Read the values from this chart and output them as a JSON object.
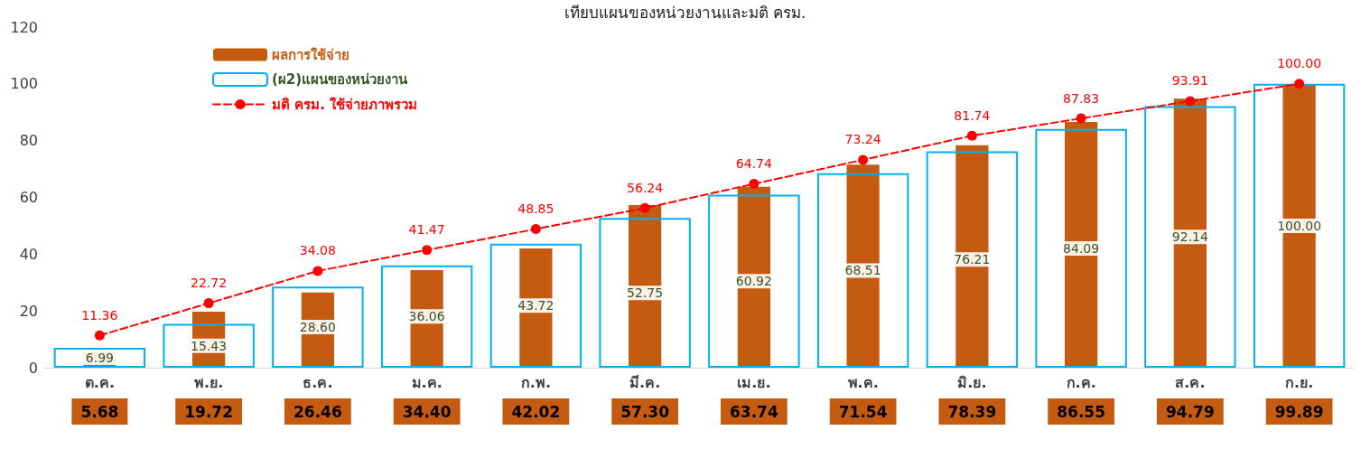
{
  "chart_data": {
    "type": "bar",
    "title": "เทียบแผนของหน่วยงานและมติ ครม.",
    "categories": [
      "ต.ค.",
      "พ.ย.",
      "ธ.ค.",
      "ม.ค.",
      "ก.พ.",
      "มี.ค.",
      "เม.ย.",
      "พ.ค.",
      "มิ.ย.",
      "ก.ค.",
      "ส.ค.",
      "ก.ย."
    ],
    "series": [
      {
        "name": "ผลการใช้จ่าย",
        "color": "#c55a11",
        "values": [
          5.68,
          19.72,
          26.46,
          34.4,
          42.02,
          57.3,
          63.74,
          71.54,
          78.39,
          86.55,
          94.79,
          99.89
        ],
        "value_labels": [
          "5.68",
          "19.72",
          "26.46",
          "34.40",
          "42.02",
          "57.30",
          "63.74",
          "71.54",
          "78.39",
          "86.55",
          "94.79",
          "99.89"
        ]
      },
      {
        "name": "(ผ2)แผนของหน่วยงาน",
        "color": "#00b0f0",
        "values": [
          6.99,
          15.43,
          28.6,
          36.06,
          43.72,
          52.75,
          60.92,
          68.51,
          76.21,
          84.09,
          92.14,
          100.0
        ],
        "value_labels": [
          "6.99",
          "15.43",
          "28.60",
          "36.06",
          "43.72",
          "52.75",
          "60.92",
          "68.51",
          "76.21",
          "84.09",
          "92.14",
          "100.00"
        ]
      },
      {
        "name": "มติ ครม. ใช้จ่ายภาพรวม",
        "type": "line",
        "color": "#ff0000",
        "marker": "circle",
        "line_style": "dashed",
        "values": [
          11.36,
          22.72,
          34.08,
          41.47,
          48.85,
          56.24,
          64.74,
          73.24,
          81.74,
          87.83,
          93.91,
          100.0
        ],
        "value_labels": [
          "11.36",
          "22.72",
          "34.08",
          "41.47",
          "48.85",
          "56.24",
          "64.74",
          "73.24",
          "81.74",
          "87.83",
          "93.91",
          "100.00"
        ]
      }
    ],
    "ylim": [
      0,
      120
    ],
    "yticks": [
      0,
      20,
      40,
      60,
      80,
      100,
      120
    ],
    "grid": false,
    "legend": "top left"
  }
}
